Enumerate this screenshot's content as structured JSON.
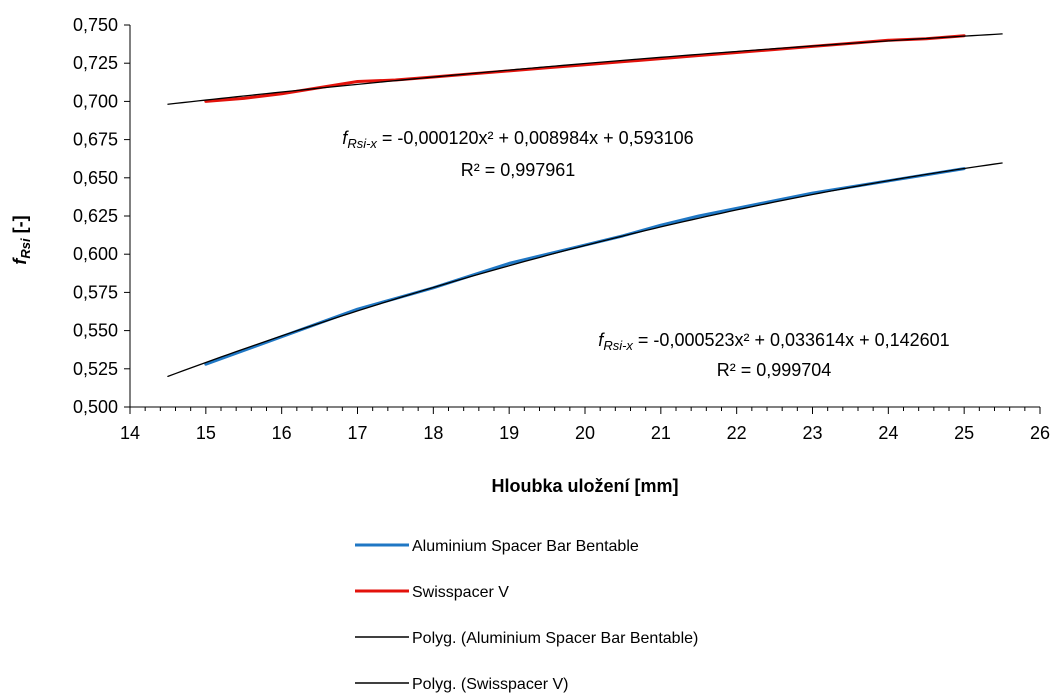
{
  "chart_data": {
    "type": "line",
    "xlabel": "Hloubka uložení [mm]",
    "ylabel": {
      "main": "f",
      "sub": "Rsi",
      "unit": " [-]"
    },
    "xlim": [
      14,
      26
    ],
    "ylim": [
      0.5,
      0.75
    ],
    "x_ticks": [
      14,
      15,
      16,
      17,
      18,
      19,
      20,
      21,
      22,
      23,
      24,
      25,
      26
    ],
    "x_tick_labels": [
      "14",
      "15",
      "16",
      "17",
      "18",
      "19",
      "20",
      "21",
      "22",
      "23",
      "24",
      "25",
      "26"
    ],
    "y_ticks": [
      0.5,
      0.525,
      0.55,
      0.575,
      0.6,
      0.625,
      0.65,
      0.675,
      0.7,
      0.725,
      0.75
    ],
    "y_tick_labels": [
      "0,500",
      "0,525",
      "0,550",
      "0,575",
      "0,600",
      "0,625",
      "0,650",
      "0,675",
      "0,700",
      "0,725",
      "0,750"
    ],
    "grid": false,
    "legend_position": "bottom",
    "series": [
      {
        "name": "Aluminium Spacer Bar Bentable",
        "color": "#1f77c4",
        "kind": "data",
        "x": [
          15,
          15.5,
          16,
          16.5,
          17,
          17.5,
          18,
          18.5,
          19,
          19.5,
          20,
          20.5,
          21,
          21.5,
          22,
          22.5,
          23,
          23.5,
          24,
          24.5,
          25
        ],
        "y": [
          0.528,
          0.537,
          0.546,
          0.555,
          0.564,
          0.571,
          0.578,
          0.586,
          0.594,
          0.6,
          0.606,
          0.612,
          0.619,
          0.625,
          0.63,
          0.635,
          0.64,
          0.644,
          0.648,
          0.652,
          0.656
        ]
      },
      {
        "name": "Swisspacer V",
        "color": "#e3120b",
        "kind": "data",
        "x": [
          15,
          15.5,
          16,
          16.5,
          17,
          17.5,
          18,
          18.5,
          19,
          19.5,
          20,
          20.5,
          21,
          21.5,
          22,
          22.5,
          23,
          23.5,
          24,
          24.5,
          25
        ],
        "y": [
          0.7,
          0.702,
          0.705,
          0.709,
          0.713,
          0.714,
          0.716,
          0.718,
          0.72,
          0.722,
          0.724,
          0.726,
          0.728,
          0.73,
          0.732,
          0.734,
          0.736,
          0.738,
          0.74,
          0.741,
          0.743
        ]
      },
      {
        "name": "Polyg. (Aluminium Spacer Bar Bentable)",
        "color": "#000000",
        "kind": "trend",
        "coefficients": [
          -0.000523,
          0.033614,
          0.142601
        ],
        "x_range": [
          14.5,
          25.5
        ],
        "equation_label": " = -0,000523x² + 0,033614x + 0,142601",
        "r2_label": "R² = 0,999704"
      },
      {
        "name": "Polyg. (Swisspacer V)",
        "color": "#000000",
        "kind": "trend",
        "coefficients": [
          -0.00012,
          0.008984,
          0.593106
        ],
        "x_range": [
          14.5,
          25.5
        ],
        "equation_label": " = -0,000120x² + 0,008984x + 0,593106",
        "r2_label": "R² = 0,997961"
      }
    ],
    "annotations": [
      {
        "series": "Polyg. (Swisspacer V)",
        "fn_main": "f",
        "fn_sub": "Rsi-x"
      },
      {
        "series": "Polyg. (Aluminium Spacer Bar Bentable)",
        "fn_main": "f",
        "fn_sub": "Rsi-x"
      }
    ]
  }
}
